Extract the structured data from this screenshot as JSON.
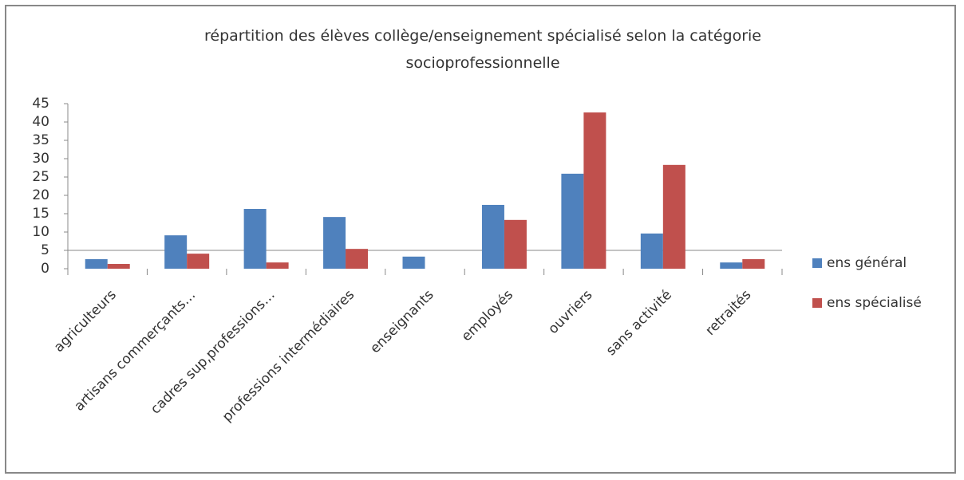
{
  "chart_data": {
    "type": "bar",
    "title": "répartition des élèves collège/enseignement spécialisé selon la catégorie socioprofessionnelle",
    "categories": [
      "agriculteurs",
      "artisans commerçants…",
      "cadres sup,professions…",
      "professions intermédiaires",
      "enseignants",
      "employés",
      "ouvriers",
      "sans activité",
      "retraités"
    ],
    "series": [
      {
        "name": "ens général",
        "color": "#4f81bd",
        "values": [
          2.6,
          9.1,
          16.3,
          14.1,
          3.3,
          17.4,
          25.9,
          9.6,
          1.7
        ]
      },
      {
        "name": "ens spécialisé",
        "color": "#c0504d",
        "values": [
          1.3,
          4.1,
          1.7,
          5.4,
          null,
          13.3,
          42.6,
          28.3,
          2.6
        ]
      }
    ],
    "ylim": [
      0,
      45
    ],
    "yticks": [
      0,
      5,
      10,
      15,
      20,
      25,
      30,
      35,
      40,
      45
    ],
    "xaxis_crosses": 5,
    "legend": "right"
  }
}
